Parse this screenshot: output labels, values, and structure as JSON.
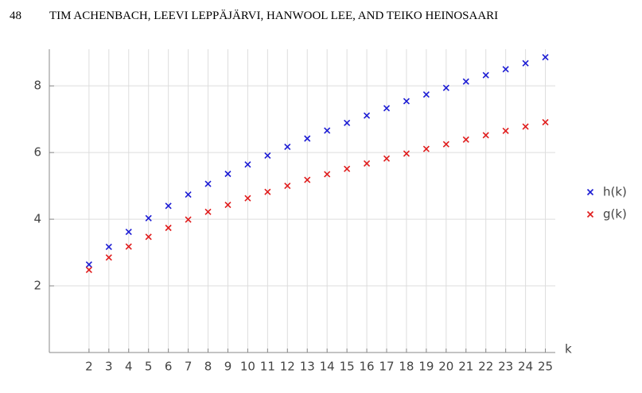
{
  "header": {
    "page_number": "48",
    "authors": "TIM ACHENBACH, LEEVI LEPPÄJÄRVI, HANWOOL LEE, AND TEIKO HEINOSAARI"
  },
  "chart_data": {
    "type": "scatter",
    "xlabel": "k",
    "x": [
      2,
      3,
      4,
      5,
      6,
      7,
      8,
      9,
      10,
      11,
      12,
      13,
      14,
      15,
      16,
      17,
      18,
      19,
      20,
      21,
      22,
      23,
      24,
      25
    ],
    "series": [
      {
        "name": "h(k)",
        "color": "#1c1cd4",
        "values": [
          2.64,
          3.17,
          3.62,
          4.03,
          4.4,
          4.74,
          5.06,
          5.36,
          5.64,
          5.91,
          6.17,
          6.42,
          6.66,
          6.89,
          7.11,
          7.33,
          7.54,
          7.74,
          7.94,
          8.13,
          8.32,
          8.5,
          8.68,
          8.86
        ]
      },
      {
        "name": "g(k)",
        "color": "#e01c1c",
        "values": [
          2.48,
          2.85,
          3.18,
          3.47,
          3.74,
          3.99,
          4.22,
          4.43,
          4.63,
          4.82,
          5.0,
          5.18,
          5.35,
          5.51,
          5.67,
          5.82,
          5.97,
          6.11,
          6.25,
          6.39,
          6.52,
          6.65,
          6.78,
          6.91
        ]
      }
    ],
    "xlim": [
      0,
      25.5
    ],
    "ylim": [
      0,
      9.1
    ],
    "xticks": [
      2,
      3,
      4,
      5,
      6,
      7,
      8,
      9,
      10,
      11,
      12,
      13,
      14,
      15,
      16,
      17,
      18,
      19,
      20,
      21,
      22,
      23,
      24,
      25
    ],
    "yticks": [
      2,
      4,
      6,
      8
    ],
    "grid": true,
    "legend": "right"
  }
}
